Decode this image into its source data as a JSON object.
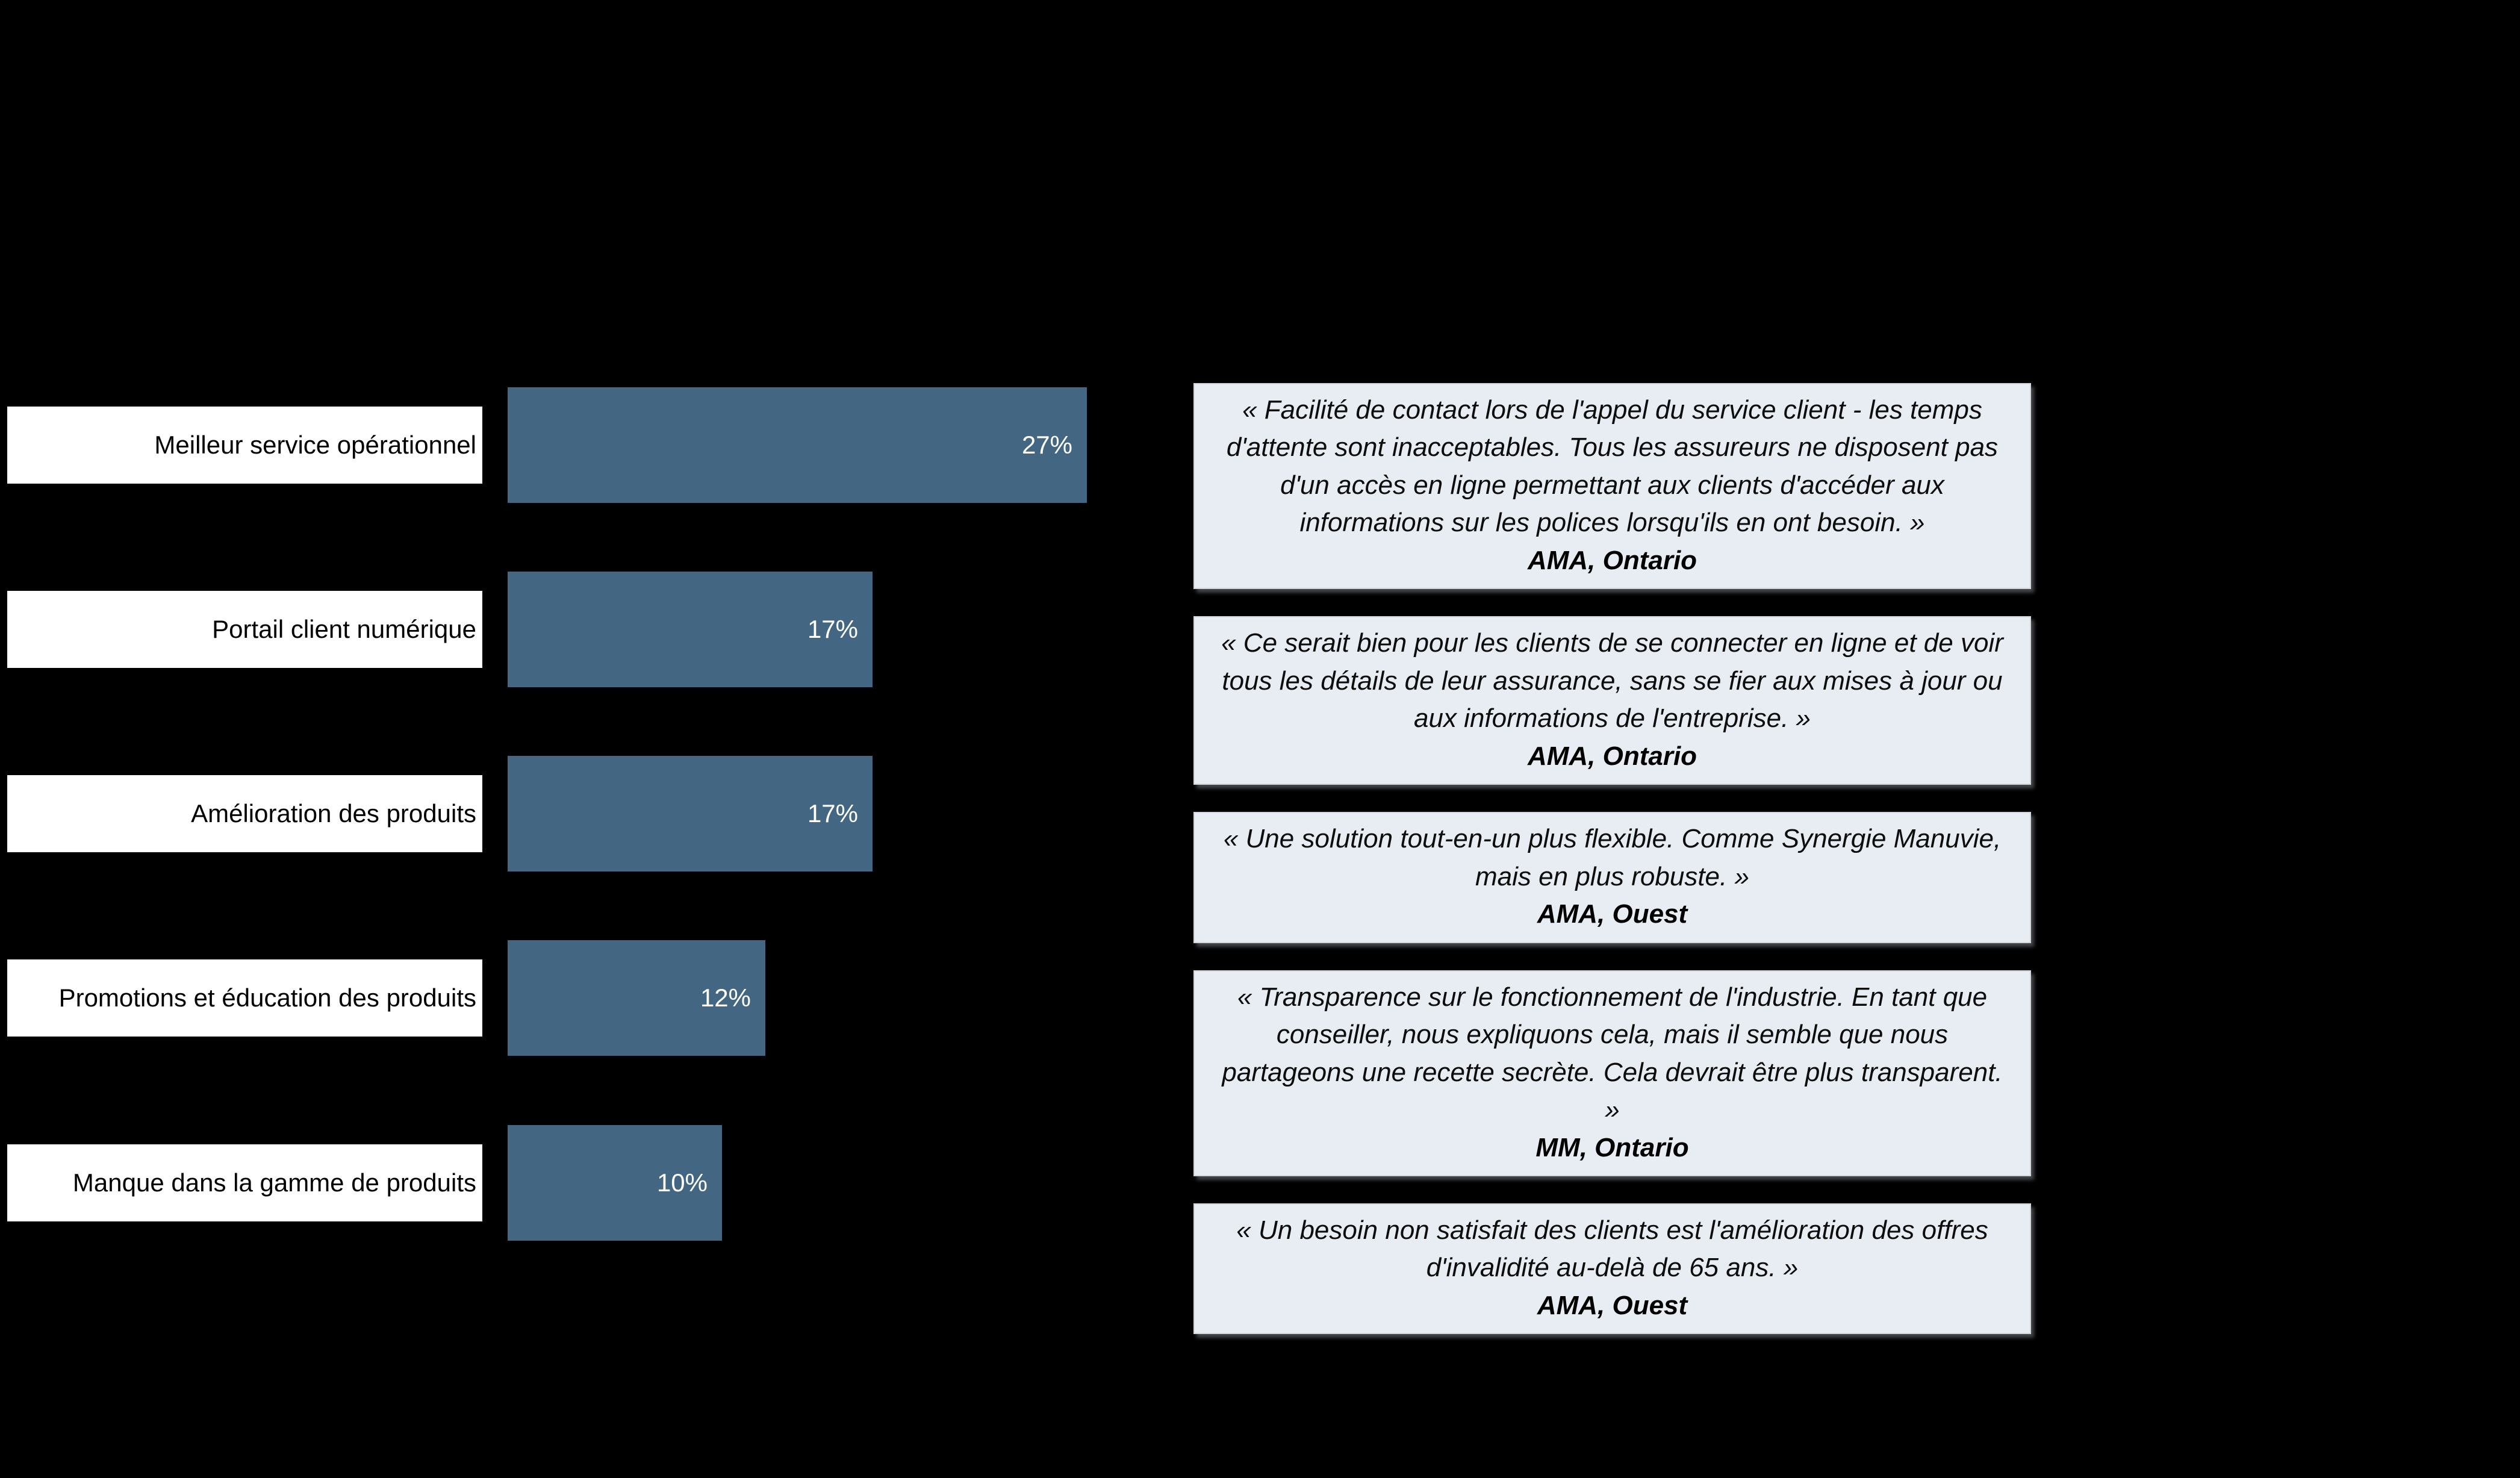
{
  "colors": {
    "background": "#000000",
    "bar": "#436783",
    "label_box_bg": "#ffffff",
    "label_text": "#000000",
    "pct_text": "#ffffff",
    "quote_box_bg": "#e8edf3",
    "quote_box_border": "#d2d6da"
  },
  "chart_data": {
    "type": "bar",
    "orientation": "horizontal",
    "title": "",
    "xlabel": "",
    "ylabel": "",
    "grid": false,
    "legend": false,
    "bar_color": "#436783",
    "categories": [
      "Meilleur service opérationnel",
      "Portail client numérique",
      "Amélioration des produits",
      "Promotions et éducation des produits",
      "Manque dans la gamme de produits"
    ],
    "values": [
      27,
      17,
      17,
      12,
      10
    ],
    "value_labels": [
      "27%",
      "17%",
      "17%",
      "12%",
      "10%"
    ],
    "annotations": [
      {
        "text": "« Facilité de contact lors de l'appel du service client - les temps d'attente sont inacceptables. Tous les assureurs ne disposent pas d'un accès en ligne permettant aux clients d'accéder aux informations sur les polices lorsqu'ils en ont besoin. »",
        "attribution": "AMA, Ontario"
      },
      {
        "text": "« Ce serait bien pour les clients de se connecter en ligne et de voir tous les détails de leur assurance, sans se fier aux mises à jour ou aux informations de l'entreprise. »",
        "attribution": "AMA, Ontario"
      },
      {
        "text": "« Une solution tout-en-un plus flexible. Comme Synergie Manuvie, mais en plus robuste. »",
        "attribution": "AMA, Ouest"
      },
      {
        "text": "« Transparence sur le fonctionnement de l'industrie. En tant que conseiller, nous expliquons cela, mais il semble que nous partageons une recette secrète. Cela devrait être plus transparent. »",
        "attribution": "MM, Ontario"
      },
      {
        "text": "« Un besoin non satisfait des clients est l'amélioration des offres d'invalidité au-delà de 65 ans. »",
        "attribution": "AMA, Ouest"
      }
    ]
  }
}
